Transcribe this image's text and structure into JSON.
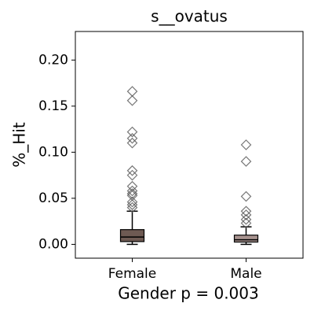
{
  "chart_data": {
    "type": "box",
    "title": "s__ovatus",
    "y_label": "%_Hit",
    "x_label": "Gender p = 0.003",
    "categories": [
      "Female",
      "Male"
    ],
    "colors": [
      "#6e5a53",
      "#a8938f"
    ],
    "boxes": [
      {
        "min": 0.0,
        "q1": 0.003,
        "median": 0.008,
        "q3": 0.016,
        "max": 0.036,
        "outliers": [
          0.166,
          0.156,
          0.122,
          0.115,
          0.11,
          0.08,
          0.075,
          0.063,
          0.058,
          0.055,
          0.053,
          0.046,
          0.043,
          0.04
        ]
      },
      {
        "min": 0.0,
        "q1": 0.0025,
        "median": 0.005,
        "q3": 0.01,
        "max": 0.019,
        "outliers": [
          0.108,
          0.09,
          0.052,
          0.036,
          0.032,
          0.027,
          0.023
        ]
      }
    ],
    "ylim": [
      -0.015,
      0.231
    ],
    "yticks": [
      {
        "value": 0,
        "label": "0.00"
      },
      {
        "value": 0.05,
        "label": "0.05"
      },
      {
        "value": 0.1,
        "label": "0.10"
      },
      {
        "value": 0.15,
        "label": "0.15"
      },
      {
        "value": 0.2,
        "label": "0.20"
      }
    ]
  }
}
